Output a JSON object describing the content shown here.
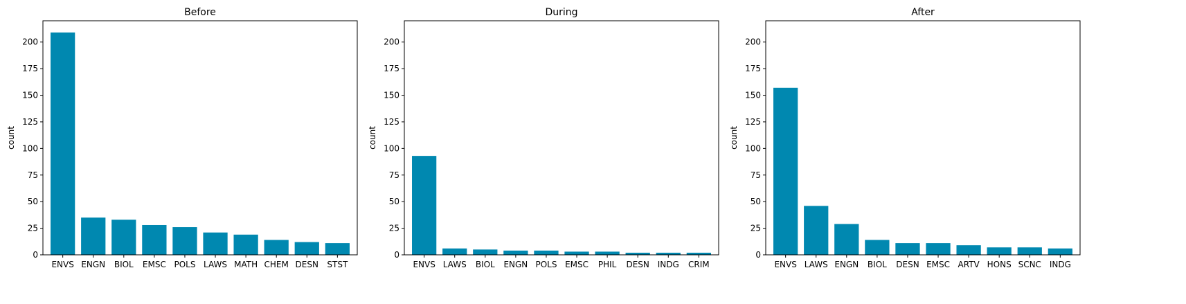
{
  "colors": {
    "bar": "#0088b0",
    "axis": "#000000",
    "background": "#ffffff"
  },
  "chart_data": [
    {
      "type": "bar",
      "title": "Before",
      "xlabel": "",
      "ylabel": "count",
      "ylim": [
        0,
        220
      ],
      "yticks": [
        0,
        25,
        50,
        75,
        100,
        125,
        150,
        175,
        200
      ],
      "grid": false,
      "categories": [
        "ENVS",
        "ENGN",
        "BIOL",
        "EMSC",
        "POLS",
        "LAWS",
        "MATH",
        "CHEM",
        "DESN",
        "STST"
      ],
      "values": [
        209,
        35,
        33,
        28,
        26,
        21,
        19,
        14,
        12,
        11
      ]
    },
    {
      "type": "bar",
      "title": "During",
      "xlabel": "",
      "ylabel": "count",
      "ylim": [
        0,
        220
      ],
      "yticks": [
        0,
        25,
        50,
        75,
        100,
        125,
        150,
        175,
        200
      ],
      "grid": false,
      "categories": [
        "ENVS",
        "LAWS",
        "BIOL",
        "ENGN",
        "POLS",
        "EMSC",
        "PHIL",
        "DESN",
        "INDG",
        "CRIM"
      ],
      "values": [
        93,
        6,
        5,
        4,
        4,
        3,
        3,
        2,
        2,
        2
      ]
    },
    {
      "type": "bar",
      "title": "After",
      "xlabel": "",
      "ylabel": "count",
      "ylim": [
        0,
        220
      ],
      "yticks": [
        0,
        25,
        50,
        75,
        100,
        125,
        150,
        175,
        200
      ],
      "grid": false,
      "categories": [
        "ENVS",
        "LAWS",
        "ENGN",
        "BIOL",
        "DESN",
        "EMSC",
        "ARTV",
        "HONS",
        "SCNC",
        "INDG"
      ],
      "values": [
        157,
        46,
        29,
        14,
        11,
        11,
        9,
        7,
        7,
        6
      ]
    }
  ]
}
